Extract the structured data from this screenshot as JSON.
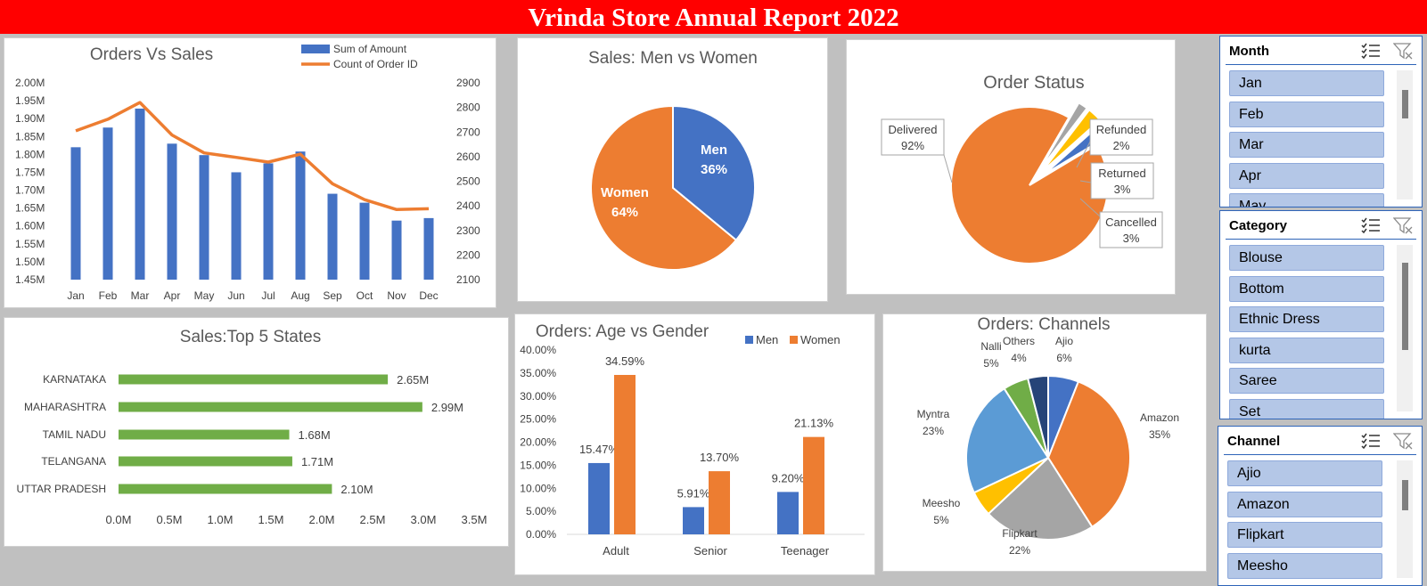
{
  "report_title": "Vrinda Store Annual Report 2022",
  "chart_data": [
    {
      "id": "orders_vs_sales",
      "type": "bar",
      "title": "Orders Vs Sales",
      "categories": [
        "Jan",
        "Feb",
        "Mar",
        "Apr",
        "May",
        "Jun",
        "Jul",
        "Aug",
        "Sep",
        "Oct",
        "Nov",
        "Dec"
      ],
      "series": [
        {
          "name": "Sum of Amount",
          "kind": "bar",
          "axis": "left",
          "values": [
            1.82,
            1.875,
            1.928,
            1.83,
            1.798,
            1.75,
            1.775,
            1.808,
            1.69,
            1.665,
            1.615,
            1.622
          ]
        },
        {
          "name": "Count of Order ID",
          "kind": "line",
          "axis": "right",
          "values": [
            2705,
            2752,
            2820,
            2688,
            2615,
            2597,
            2578,
            2610,
            2490,
            2425,
            2385,
            2388
          ]
        }
      ],
      "y_left_labels": [
        "1.45M",
        "1.50M",
        "1.55M",
        "1.60M",
        "1.65M",
        "1.70M",
        "1.75M",
        "1.80M",
        "1.85M",
        "1.90M",
        "1.95M",
        "2.00M"
      ],
      "ylim_left": [
        1.45,
        2.0
      ],
      "y_right_labels": [
        "2100",
        "2200",
        "2300",
        "2400",
        "2500",
        "2600",
        "2700",
        "2800",
        "2900"
      ],
      "ylim_right": [
        2100,
        2900
      ],
      "legend": "top-right",
      "colors": {
        "bar": "#4472c4",
        "line": "#ed7d31"
      }
    },
    {
      "id": "men_vs_women",
      "type": "pie",
      "title": "Sales: Men vs Women",
      "slices": [
        {
          "name": "Men",
          "value": 36,
          "label": "36%",
          "color": "#4472c4"
        },
        {
          "name": "Women",
          "value": 64,
          "label": "64%",
          "color": "#ed7d31"
        }
      ]
    },
    {
      "id": "order_status",
      "type": "pie",
      "title": "Order Status",
      "slices": [
        {
          "name": "Delivered",
          "value": 92,
          "label": "92%",
          "color": "#ed7d31"
        },
        {
          "name": "Refunded",
          "value": 2,
          "label": "2%",
          "color": "#a5a5a5"
        },
        {
          "name": "Returned",
          "value": 3,
          "label": "3%",
          "color": "#ffc000"
        },
        {
          "name": "Cancelled",
          "value": 3,
          "label": "3%",
          "color": "#4472c4"
        }
      ]
    },
    {
      "id": "top_states",
      "type": "bar",
      "orientation": "horizontal",
      "title": "Sales:Top 5 States",
      "categories": [
        "KARNATAKA",
        "MAHARASHTRA",
        "TAMIL NADU",
        "TELANGANA",
        "UTTAR PRADESH"
      ],
      "values": [
        2.65,
        2.99,
        1.68,
        1.71,
        2.1
      ],
      "value_labels": [
        "2.65M",
        "2.99M",
        "1.68M",
        "1.71M",
        "2.10M"
      ],
      "x_labels": [
        "0.0M",
        "0.5M",
        "1.0M",
        "1.5M",
        "2.0M",
        "2.5M",
        "3.0M",
        "3.5M"
      ],
      "xlim": [
        0,
        3.5
      ],
      "color": "#70ad47"
    },
    {
      "id": "age_vs_gender",
      "type": "bar",
      "title": "Orders: Age vs Gender",
      "categories": [
        "Adult",
        "Senior",
        "Teenager"
      ],
      "series": [
        {
          "name": "Men",
          "values": [
            15.47,
            5.91,
            9.2
          ],
          "labels": [
            "15.47%",
            "5.91%",
            "9.20%"
          ],
          "color": "#4472c4"
        },
        {
          "name": "Women",
          "values": [
            34.59,
            13.7,
            21.13
          ],
          "labels": [
            "34.59%",
            "13.70%",
            "21.13%"
          ],
          "color": "#ed7d31"
        }
      ],
      "y_labels": [
        "0.00%",
        "5.00%",
        "10.00%",
        "15.00%",
        "20.00%",
        "25.00%",
        "30.00%",
        "35.00%",
        "40.00%"
      ],
      "ylim": [
        0,
        40
      ],
      "legend": "top-right"
    },
    {
      "id": "channels",
      "type": "pie",
      "title": "Orders: Channels",
      "slices": [
        {
          "name": "Ajio",
          "value": 6,
          "label": "6%",
          "color": "#4472c4"
        },
        {
          "name": "Amazon",
          "value": 35,
          "label": "35%",
          "color": "#ed7d31"
        },
        {
          "name": "Flipkart",
          "value": 22,
          "label": "22%",
          "color": "#a5a5a5"
        },
        {
          "name": "Meesho",
          "value": 5,
          "label": "5%",
          "color": "#ffc000"
        },
        {
          "name": "Myntra",
          "value": 23,
          "label": "23%",
          "color": "#5b9bd5"
        },
        {
          "name": "Nalli",
          "value": 5,
          "label": "5%",
          "color": "#70ad47"
        },
        {
          "name": "Others",
          "value": 4,
          "label": "4%",
          "color": "#264478"
        }
      ]
    }
  ],
  "slicers": {
    "month": {
      "title": "Month",
      "items": [
        "Jan",
        "Feb",
        "Mar",
        "Apr",
        "May"
      ]
    },
    "category": {
      "title": "Category",
      "items": [
        "Blouse",
        "Bottom",
        "Ethnic Dress",
        "kurta",
        "Saree",
        "Set"
      ]
    },
    "channel": {
      "title": "Channel",
      "items": [
        "Ajio",
        "Amazon",
        "Flipkart",
        "Meesho"
      ]
    }
  }
}
